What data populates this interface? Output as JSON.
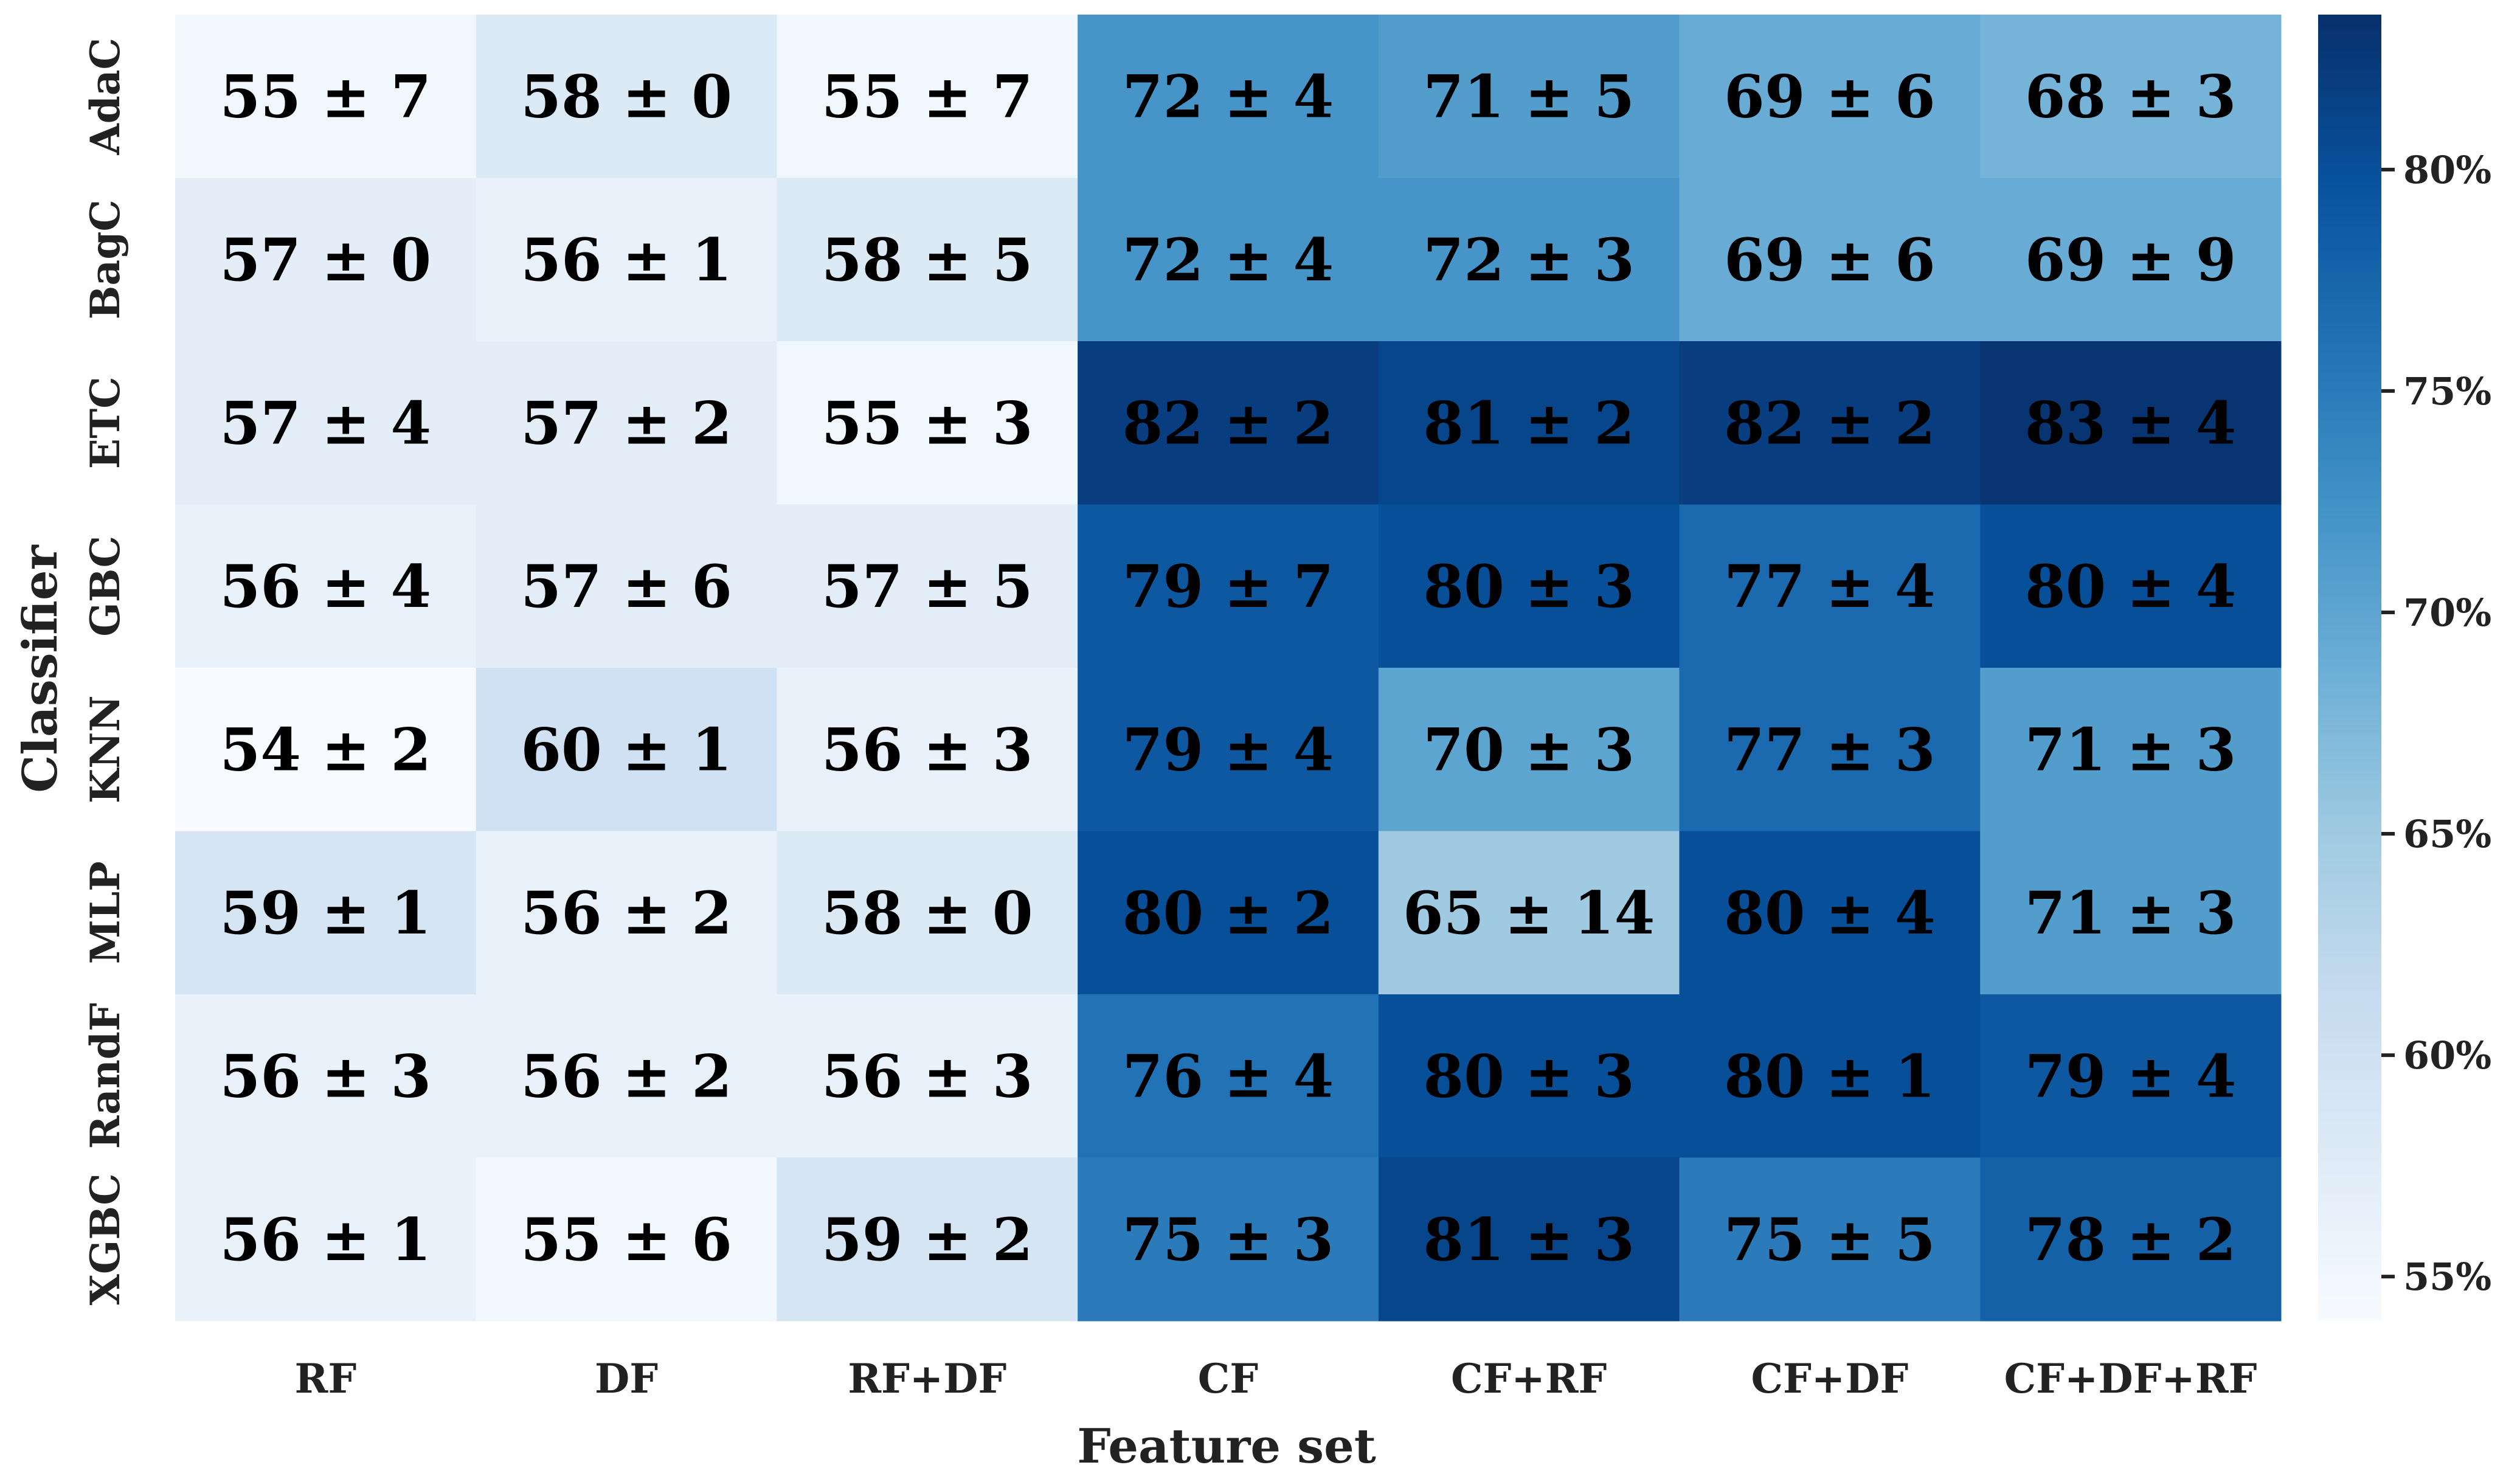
{
  "chart_data": {
    "type": "heatmap",
    "title": "",
    "xlabel": "Feature set",
    "ylabel": "Classifier",
    "x_categories": [
      "RF",
      "DF",
      "RF+DF",
      "CF",
      "CF+RF",
      "CF+DF",
      "CF+DF+RF"
    ],
    "y_categories": [
      "AdaC",
      "BagC",
      "ETC",
      "GBC",
      "KNN",
      "MLP",
      "RandF",
      "XGBC"
    ],
    "values": [
      [
        55,
        58,
        55,
        72,
        71,
        69,
        68
      ],
      [
        57,
        56,
        58,
        72,
        72,
        69,
        69
      ],
      [
        57,
        57,
        55,
        82,
        81,
        82,
        83
      ],
      [
        56,
        57,
        57,
        79,
        80,
        77,
        80
      ],
      [
        54,
        60,
        56,
        79,
        70,
        77,
        71
      ],
      [
        59,
        56,
        58,
        80,
        65,
        80,
        71
      ],
      [
        56,
        56,
        56,
        76,
        80,
        80,
        79
      ],
      [
        56,
        55,
        59,
        75,
        81,
        75,
        78
      ]
    ],
    "errors": [
      [
        7,
        0,
        7,
        4,
        5,
        6,
        3
      ],
      [
        0,
        1,
        5,
        4,
        3,
        6,
        9
      ],
      [
        4,
        2,
        3,
        2,
        2,
        2,
        4
      ],
      [
        4,
        6,
        5,
        7,
        3,
        4,
        4
      ],
      [
        2,
        1,
        3,
        4,
        3,
        3,
        3
      ],
      [
        1,
        2,
        0,
        2,
        14,
        4,
        3
      ],
      [
        3,
        2,
        3,
        4,
        3,
        1,
        4
      ],
      [
        1,
        6,
        2,
        3,
        3,
        5,
        2
      ]
    ],
    "cell_labels": [
      [
        "55 ± 7",
        "58 ± 0",
        "55 ± 7",
        "72 ± 4",
        "71 ± 5",
        "69 ± 6",
        "68 ± 3"
      ],
      [
        "57 ± 0",
        "56 ± 1",
        "58 ± 5",
        "72 ± 4",
        "72 ± 3",
        "69 ± 6",
        "69 ± 9"
      ],
      [
        "57 ± 4",
        "57 ± 2",
        "55 ± 3",
        "82 ± 2",
        "81 ± 2",
        "82 ± 2",
        "83 ± 4"
      ],
      [
        "56 ± 4",
        "57 ± 6",
        "57 ± 5",
        "79 ± 7",
        "80 ± 3",
        "77 ± 4",
        "80 ± 4"
      ],
      [
        "54 ± 2",
        "60 ± 1",
        "56 ± 3",
        "79 ± 4",
        "70 ± 3",
        "77 ± 3",
        "71 ± 3"
      ],
      [
        "59 ± 1",
        "56 ± 2",
        "58 ± 0",
        "80 ± 2",
        "65 ± 14",
        "80 ± 4",
        "71 ± 3"
      ],
      [
        "56 ± 3",
        "56 ± 2",
        "56 ± 3",
        "76 ± 4",
        "80 ± 3",
        "80 ± 1",
        "79 ± 4"
      ],
      [
        "56 ± 1",
        "55 ± 6",
        "59 ± 2",
        "75 ± 3",
        "81 ± 3",
        "75 ± 5",
        "78 ± 2"
      ]
    ],
    "colorbar": {
      "min": 54,
      "max": 83.5,
      "ticks": [
        55,
        60,
        65,
        70,
        75,
        80
      ],
      "tick_labels": [
        "55%",
        "60%",
        "65%",
        "70%",
        "75%",
        "80%"
      ]
    },
    "colormap": [
      "#f7fbff",
      "#deebf7",
      "#c6dbef",
      "#9ecae1",
      "#6baed6",
      "#4292c6",
      "#2171b5",
      "#08519c",
      "#08306b"
    ],
    "text_color": "#000000",
    "grid": false,
    "legend": "colorbar-right"
  }
}
